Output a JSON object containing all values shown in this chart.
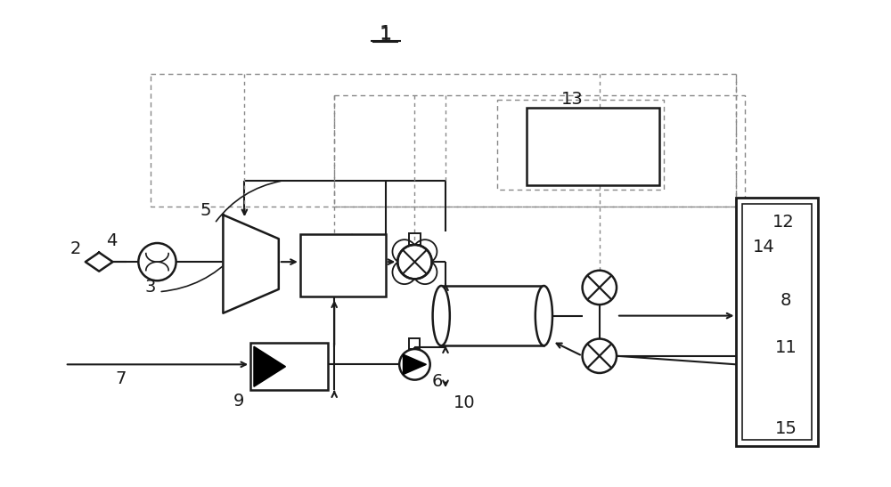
{
  "bg_color": "#ffffff",
  "lc": "#1a1a1a",
  "dc": "#888888",
  "fig_width": 10.0,
  "fig_height": 5.47,
  "dpi": 100
}
